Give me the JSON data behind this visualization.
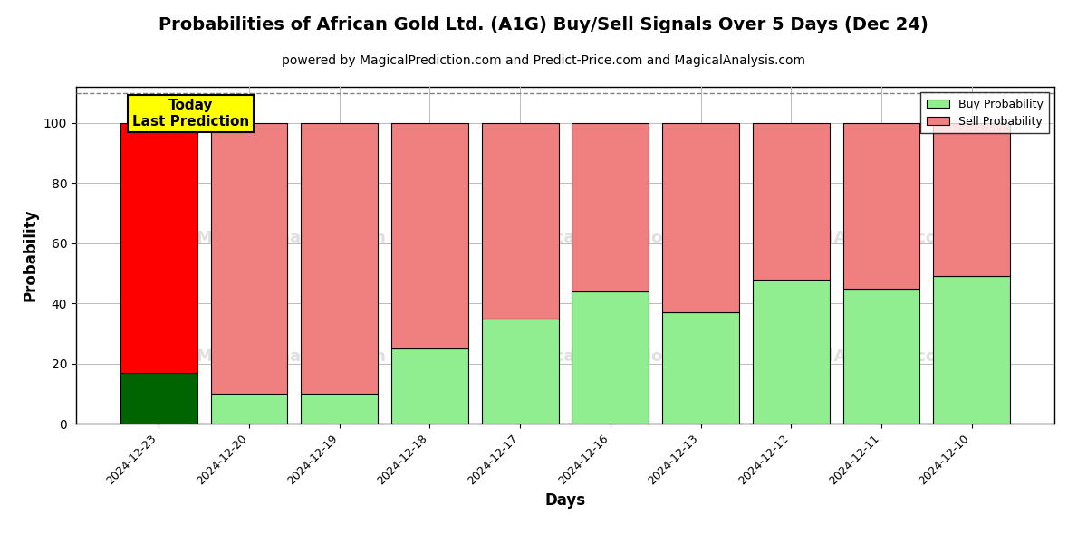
{
  "title": "Probabilities of African Gold Ltd. (A1G) Buy/Sell Signals Over 5 Days (Dec 24)",
  "subtitle": "powered by MagicalPrediction.com and Predict-Price.com and MagicalAnalysis.com",
  "xlabel": "Days",
  "ylabel": "Probability",
  "dates": [
    "2024-12-23",
    "2024-12-20",
    "2024-12-19",
    "2024-12-18",
    "2024-12-17",
    "2024-12-16",
    "2024-12-13",
    "2024-12-12",
    "2024-12-11",
    "2024-12-10"
  ],
  "buy_values": [
    17,
    10,
    10,
    25,
    35,
    44,
    37,
    48,
    45,
    49
  ],
  "sell_values": [
    83,
    90,
    90,
    75,
    65,
    56,
    63,
    52,
    55,
    51
  ],
  "today_bar_index": 0,
  "today_buy_color": "#006400",
  "today_sell_color": "#ff0000",
  "other_buy_color": "#90EE90",
  "other_sell_color": "#F08080",
  "bar_edge_color": "black",
  "bar_edge_width": 0.8,
  "today_label_text": "Today\nLast Prediction",
  "today_label_bg": "#ffff00",
  "legend_buy_label": "Buy Probability",
  "legend_sell_label": "Sell Probability",
  "ylim_max": 112,
  "dashed_line_y": 110,
  "grid_color": "#bbbbbb",
  "yticks": [
    0,
    20,
    40,
    60,
    80,
    100
  ],
  "bar_width": 0.85,
  "title_fontsize": 14,
  "subtitle_fontsize": 10,
  "axis_label_fontsize": 12,
  "tick_fontsize": 9
}
